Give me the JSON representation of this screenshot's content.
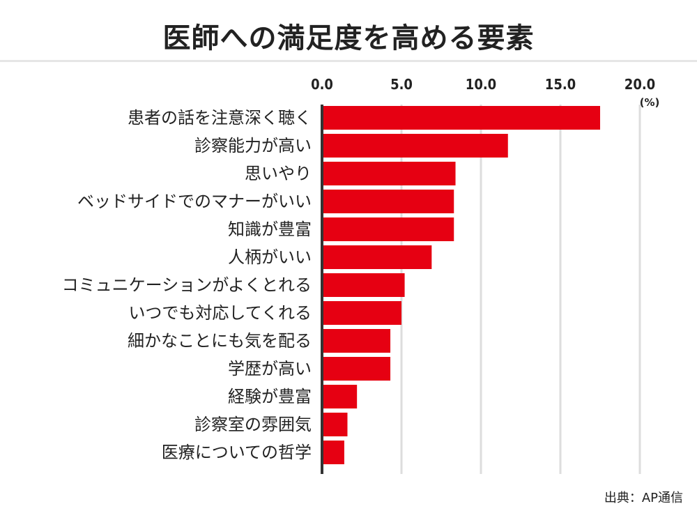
{
  "title": "医師への満足度を高める要素",
  "source": "出典：AP通信",
  "colors": {
    "bar": "#e60012",
    "axis": "#333333",
    "grid": "#dddddd",
    "text": "#222222"
  },
  "chart_data": {
    "type": "bar",
    "orientation": "horizontal",
    "title": "医師への満足度を高める要素",
    "unit_label": "(%)",
    "xlim": [
      0,
      20
    ],
    "ticks": [
      0,
      5,
      10,
      15,
      20
    ],
    "tick_labels": [
      "0.0",
      "5.0",
      "10.0",
      "15.0",
      "20.0"
    ],
    "grid": true,
    "categories": [
      "患者の話を注意深く聴く",
      "診察能力が高い",
      "思いやり",
      "ベッドサイドでのマナーがいい",
      "知識が豊富",
      "人柄がいい",
      "コミュニケーションがよくとれる",
      "いつでも対応してくれる",
      "細かなことにも気を配る",
      "学歴が高い",
      "経験が豊富",
      "診察室の雰囲気",
      "医療についての哲学"
    ],
    "values": [
      17.5,
      11.7,
      8.4,
      8.3,
      8.3,
      6.9,
      5.2,
      5.0,
      4.3,
      4.3,
      2.2,
      1.6,
      1.4
    ]
  }
}
